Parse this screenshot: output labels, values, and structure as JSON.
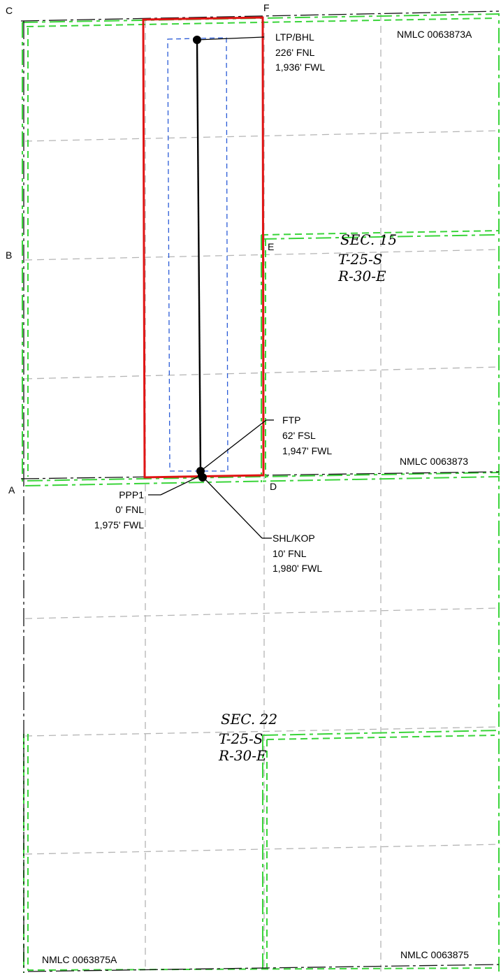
{
  "corners": {
    "a": "A",
    "b": "B",
    "c": "C",
    "d": "D",
    "e": "E",
    "f": "F"
  },
  "leases": {
    "north_east": "NMLC 0063873A",
    "middle_east": "NMLC 0063873",
    "south_west": "NMLC 0063875A",
    "south_east": "NMLC 0063875"
  },
  "sections": {
    "sec15": {
      "section": "SEC. 15",
      "township": "T-25-S",
      "range": "R-30-E"
    },
    "sec22": {
      "section": "SEC. 22",
      "township": "T-25-S",
      "range": "R-30-E"
    }
  },
  "wellpoints": {
    "ltp": {
      "name": "LTP/BHL",
      "line1": "226' FNL",
      "line2": "1,936' FWL"
    },
    "ftp": {
      "name": "FTP",
      "line1": "62' FSL",
      "line2": "1,947' FWL"
    },
    "ppp": {
      "name": "PPP1",
      "line1": "0' FNL",
      "line2": "1,975' FWL"
    },
    "shl": {
      "name": "SHL/KOP",
      "line1": "10' FNL",
      "line2": "1,980' FWL"
    }
  },
  "colors": {
    "unit_boundary": "#e01414",
    "setback": "#2a5bd7",
    "lease_line": "#3ad43a",
    "grid": "#b4b4b4",
    "wellbore": "#000000"
  }
}
